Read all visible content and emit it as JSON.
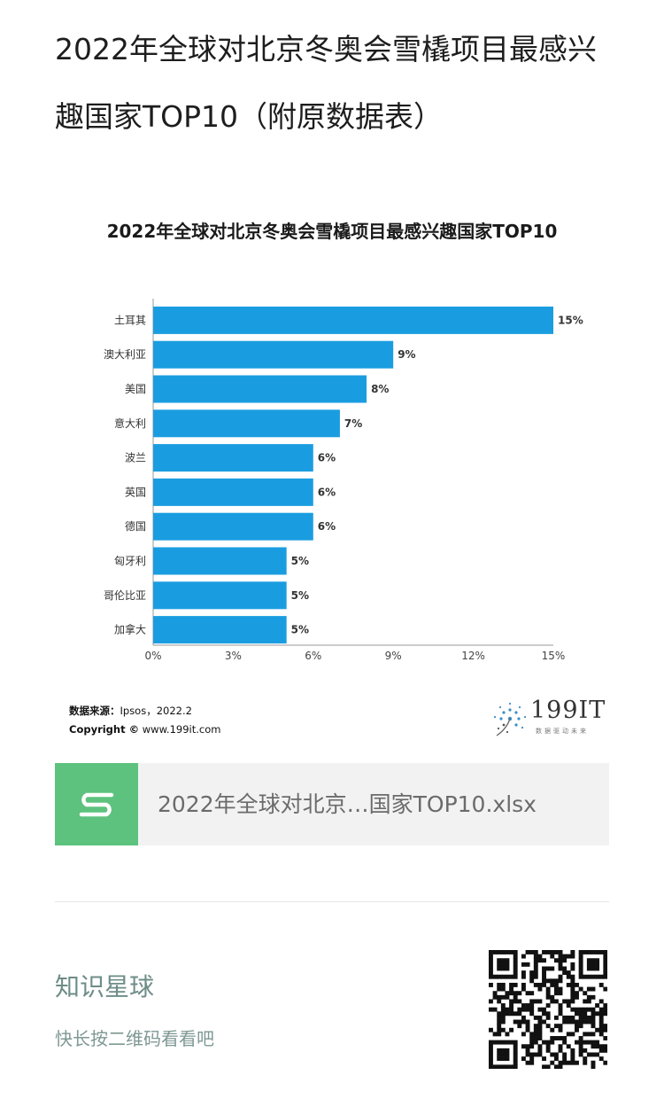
{
  "article": {
    "title": "2022年全球对北京冬奥会雪橇项目最感兴趣国家TOP10（附原数据表）"
  },
  "chart_data": {
    "type": "bar",
    "orientation": "horizontal",
    "title": "2022年全球对北京冬奥会雪橇项目最感兴趣国家TOP10",
    "categories": [
      "土耳其",
      "澳大利亚",
      "美国",
      "意大利",
      "波兰",
      "英国",
      "德国",
      "匈牙利",
      "哥伦比亚",
      "加拿大"
    ],
    "values": [
      15,
      9,
      8,
      7,
      6,
      6,
      6,
      5,
      5,
      5
    ],
    "value_labels": [
      "15%",
      "9%",
      "8%",
      "7%",
      "6%",
      "6%",
      "6%",
      "5%",
      "5%",
      "5%"
    ],
    "xlim": [
      0,
      15
    ],
    "x_ticks": [
      "0%",
      "3%",
      "6%",
      "9%",
      "12%",
      "15%"
    ],
    "grid": false,
    "bar_color": "#1a9de0"
  },
  "source": {
    "label": "数据来源：",
    "text": "Ipsos，2022.2",
    "copyright_label": "Copyright ©",
    "copyright_site": "www.199it.com"
  },
  "logo": {
    "brand": "199IT",
    "slogan": "数据驱动未来",
    "icon": "dandelion-icon"
  },
  "attachment": {
    "file_name": "2022年全球对北京…国家TOP10.xlsx",
    "icon": "spreadsheet-s-icon",
    "icon_color": "#5dc27e"
  },
  "community": {
    "name": "知识星球",
    "hint": "快长按二维码看看吧",
    "qr_icon": "qr-code-icon"
  }
}
